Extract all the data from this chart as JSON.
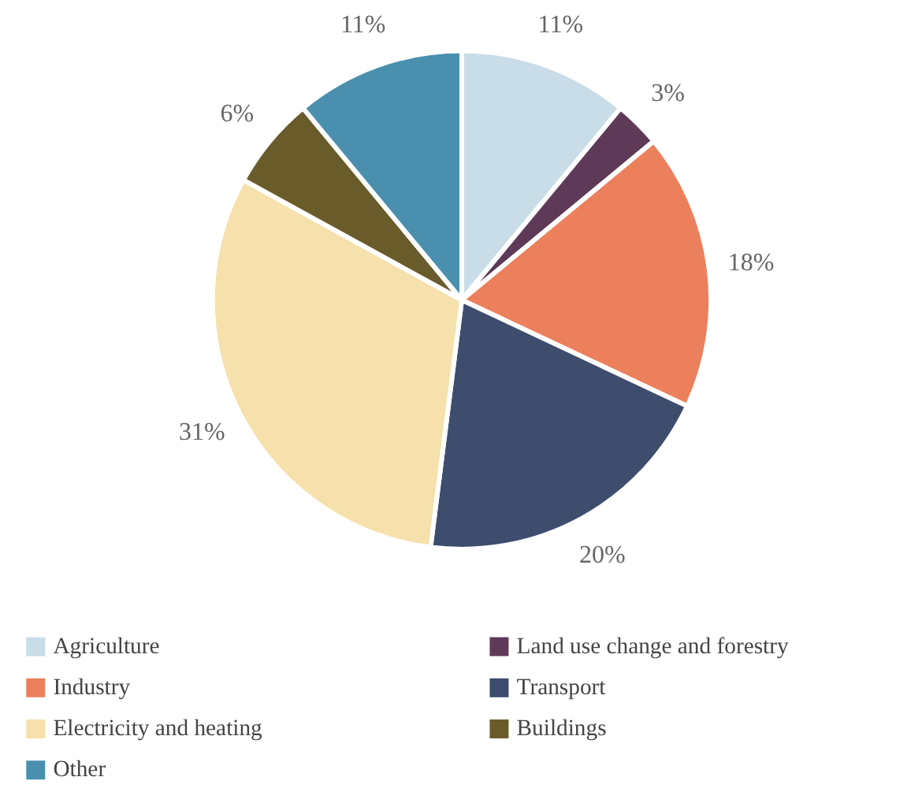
{
  "chart_data": {
    "type": "pie",
    "categories": [
      "Agriculture",
      "Land use change and forestry",
      "Industry",
      "Transport",
      "Electricity and heating",
      "Buildings",
      "Other"
    ],
    "values": [
      11,
      3,
      18,
      20,
      31,
      6,
      11
    ],
    "value_labels": [
      "11%",
      "3%",
      "18%",
      "20%",
      "31%",
      "6%",
      "11%"
    ],
    "colors": [
      "#c9dde8",
      "#5e3a58",
      "#ec805c",
      "#3e4d6e",
      "#f6e0ab",
      "#6a5b2b",
      "#4a90ae"
    ],
    "legend": "bottom"
  }
}
